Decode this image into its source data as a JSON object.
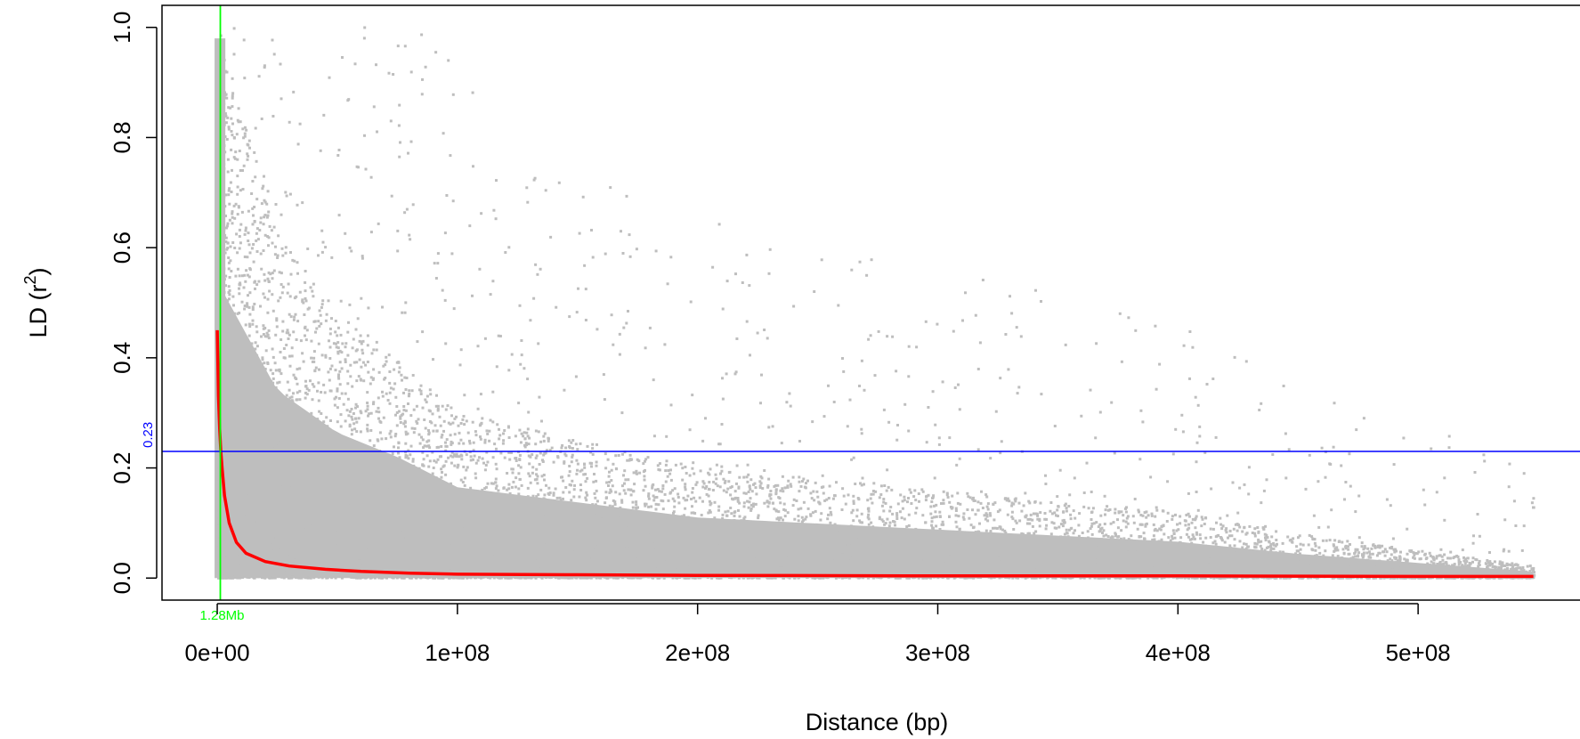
{
  "chart_data": {
    "type": "scatter",
    "title": "",
    "xlabel": "Distance (bp)",
    "ylabel_main": "LD (r",
    "ylabel_sup": "2",
    "ylabel_close": ")",
    "xlim": [
      -23000000,
      570000000
    ],
    "ylim": [
      -0.04,
      1.04
    ],
    "x_ticks": [
      0,
      100000000,
      200000000,
      300000000,
      400000000,
      500000000
    ],
    "x_tick_labels": [
      "0e+00",
      "1e+08",
      "2e+08",
      "3e+08",
      "4e+08",
      "5e+08"
    ],
    "y_ticks": [
      0.0,
      0.2,
      0.4,
      0.6,
      0.8,
      1.0
    ],
    "y_tick_labels": [
      "0.0",
      "0.2",
      "0.4",
      "0.6",
      "0.8",
      "1.0"
    ],
    "grid": false,
    "legend": "none",
    "series": [
      {
        "kind": "points",
        "color": "#bebebe",
        "description_of_density": "pairwise r2 values; dense near 0 distance, decaying with distance up to ~5.5e+08 bp",
        "envelope_x": [
          0,
          25000000,
          50000000,
          75000000,
          100000000,
          150000000,
          200000000,
          250000000,
          300000000,
          350000000,
          400000000,
          450000000,
          500000000,
          550000000
        ],
        "envelope_upper_dense": [
          0.98,
          0.62,
          0.48,
          0.4,
          0.3,
          0.25,
          0.2,
          0.18,
          0.16,
          0.14,
          0.12,
          0.08,
          0.05,
          0.02
        ]
      },
      {
        "kind": "decay-curve",
        "color": "#ff0000",
        "x": [
          0,
          500000,
          1000000,
          1500000,
          2000000,
          3000000,
          5000000,
          8000000,
          12000000,
          20000000,
          30000000,
          45000000,
          60000000,
          80000000,
          100000000,
          150000000,
          200000000,
          300000000,
          400000000,
          500000000,
          548000000
        ],
        "y": [
          0.45,
          0.33,
          0.27,
          0.23,
          0.2,
          0.15,
          0.1,
          0.065,
          0.045,
          0.03,
          0.022,
          0.016,
          0.012,
          0.009,
          0.007,
          0.006,
          0.005,
          0.004,
          0.004,
          0.003,
          0.003
        ]
      }
    ],
    "reference_lines": {
      "horizontal": {
        "y": 0.23,
        "color": "#0000ff",
        "label": "0.23"
      },
      "vertical": {
        "x": 1280000,
        "color": "#00ff00",
        "label": "1.28Mb"
      }
    }
  }
}
